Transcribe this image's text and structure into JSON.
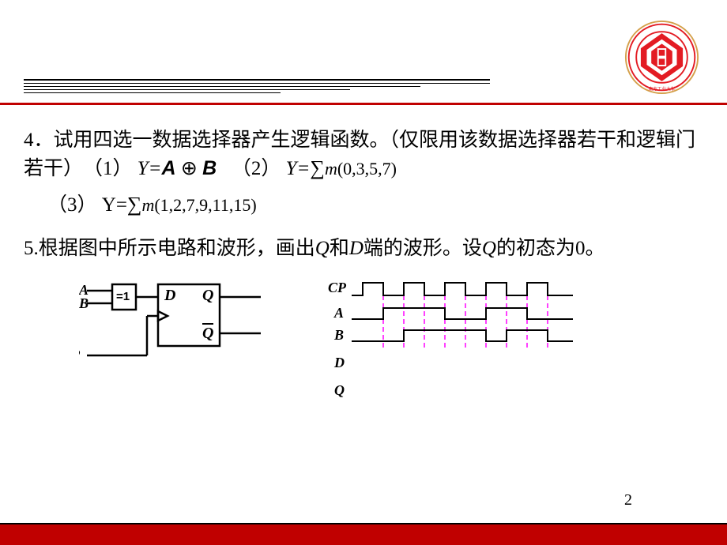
{
  "question4": {
    "prefix": "4．",
    "text": "试用四选一数据选择器产生逻辑函数。（仅限用该数据选择器若干和逻辑门若干）　（1）",
    "eq1_y": "Y=",
    "eq1_a": "A",
    "eq1_xor": "⊕",
    "eq1_b": "B",
    "part2_label": "　（2）",
    "eq2_y": "Y=",
    "eq2_sigma": "∑",
    "eq2_m": "m",
    "eq2_terms": "(0,3,5,7)",
    "part3_label": "（3）",
    "eq3_y": "Y=",
    "eq3_sigma": "∑",
    "eq3_m": "m",
    "eq3_terms": "(1,2,7,9,11,15)"
  },
  "question5": {
    "text": "5.根据图中所示电路和波形，画出",
    "q": "Q",
    "and": "和",
    "d": "D",
    "text2": "端的波形。设",
    "q2": "Q",
    "text3": "的初态为0。"
  },
  "circuit": {
    "labels": {
      "A": "A",
      "B": "B",
      "CP": "CP",
      "D": "D",
      "Q": "Q",
      "Qbar": "Q",
      "xor": "=1"
    }
  },
  "timing": {
    "labels": {
      "CP": "CP",
      "A": "A",
      "B": "B",
      "D": "D",
      "Q": "Q"
    },
    "cp_edges": [
      44,
      70,
      96,
      122,
      148,
      174,
      200,
      226,
      252,
      278
    ],
    "dash_x": [
      70,
      96,
      122,
      148,
      174,
      200,
      226,
      252,
      278
    ],
    "colors": {
      "signal": "#000000",
      "dash": "#ff00ff"
    }
  },
  "page_number": "2",
  "logo": {
    "outer_ring": "#d4a04a",
    "red": "#e31b23",
    "white": "#ffffff"
  }
}
